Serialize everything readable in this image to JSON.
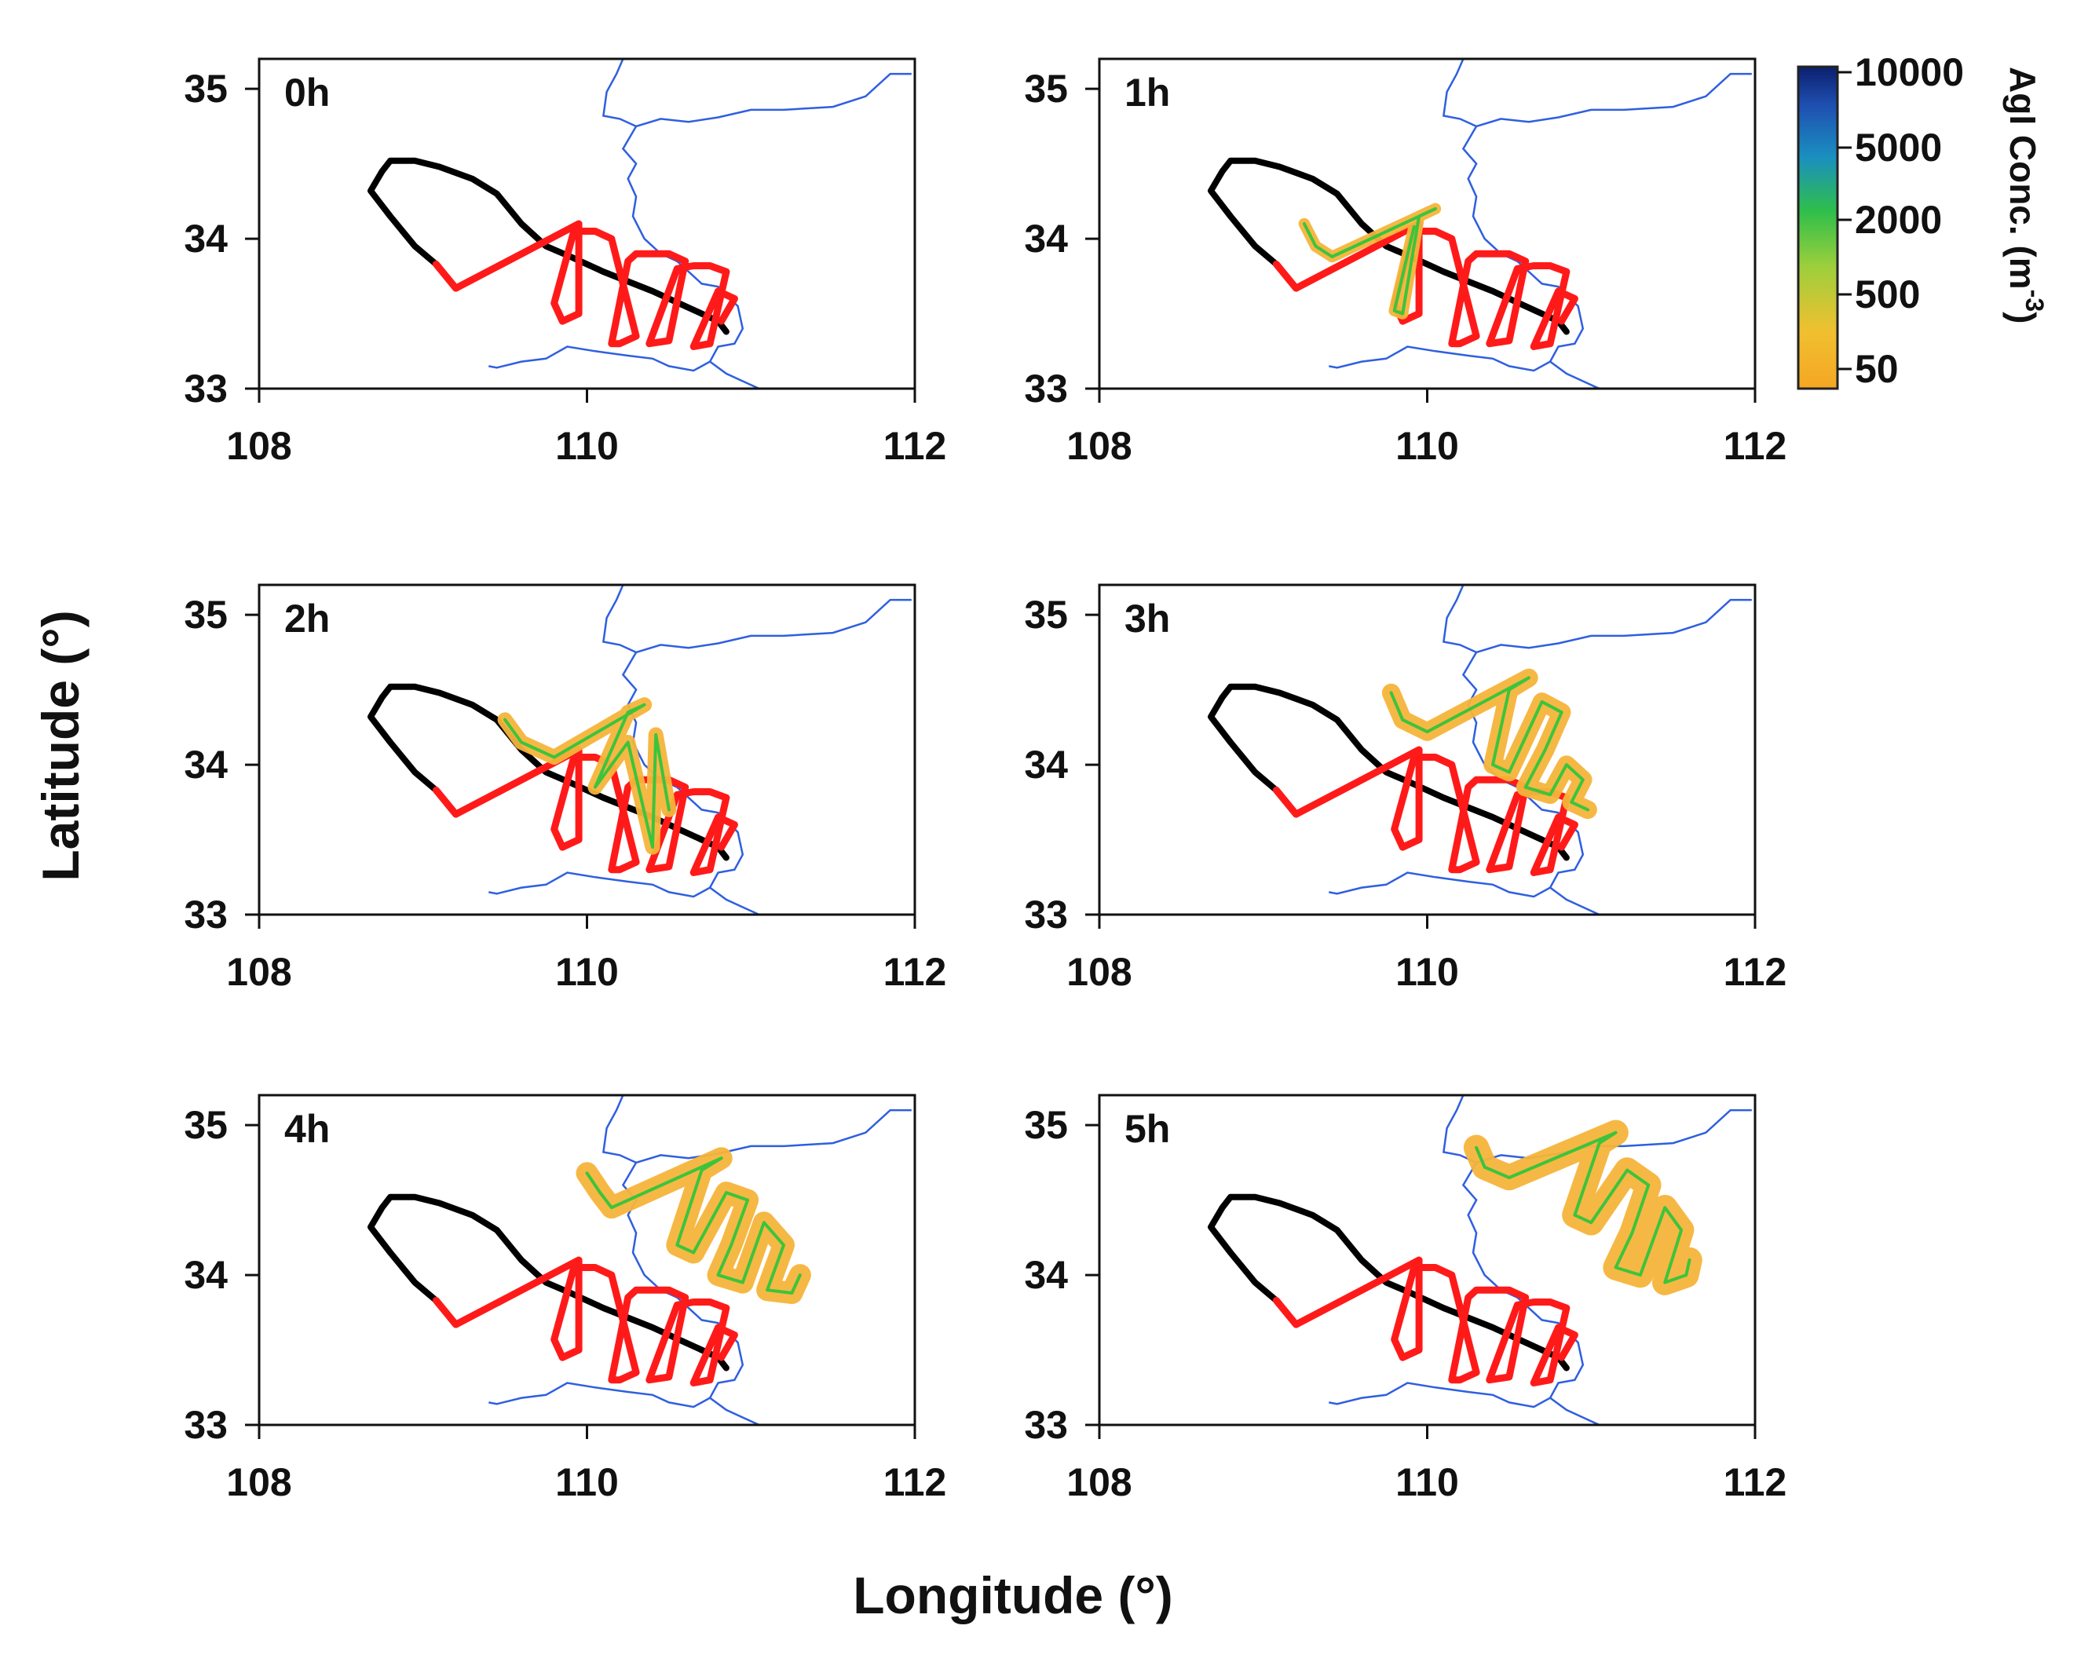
{
  "chart_data": {
    "type": "map-track-panels",
    "xlabel": "Longitude (°)",
    "ylabel": "Latitude (°)",
    "xlim": [
      108,
      112
    ],
    "ylim": [
      33,
      35.2
    ],
    "xticks": [
      "108",
      "110",
      "112"
    ],
    "yticks": [
      "33",
      "34",
      "35"
    ],
    "colorbar": {
      "title": "AgI Conc. (m",
      "title_superscript": "-3",
      "title_close": ")",
      "ticks": [
        "10000",
        "5000",
        "2000",
        "500",
        "50"
      ],
      "colors": [
        "#f5a623",
        "#f0c030",
        "#9ccf3c",
        "#2fbf4a",
        "#1a8fc0",
        "#1f4fb0",
        "#0b1f6e"
      ]
    },
    "colors": {
      "flight_track": "#000000",
      "seeding_track": "#ff1a1a",
      "river": "#2f5fe0",
      "plume_edge": "#f5b43a",
      "plume_core": "#3cc43c"
    },
    "flight_track": [
      [
        110.85,
        33.38
      ],
      [
        110.8,
        33.45
      ],
      [
        110.6,
        33.55
      ],
      [
        110.4,
        33.65
      ],
      [
        110.1,
        33.78
      ],
      [
        109.9,
        33.88
      ],
      [
        109.75,
        33.95
      ],
      [
        109.6,
        34.1
      ],
      [
        109.45,
        34.3
      ],
      [
        109.3,
        34.4
      ],
      [
        109.1,
        34.48
      ],
      [
        108.95,
        34.52
      ],
      [
        108.8,
        34.52
      ],
      [
        108.75,
        34.45
      ],
      [
        108.68,
        34.32
      ],
      [
        108.8,
        34.15
      ],
      [
        108.95,
        33.95
      ],
      [
        109.08,
        33.83
      ]
    ],
    "seeding_track": [
      [
        109.08,
        33.83
      ],
      [
        109.2,
        33.67
      ],
      [
        109.55,
        33.87
      ],
      [
        109.95,
        34.1
      ],
      [
        109.95,
        33.5
      ],
      [
        109.85,
        33.45
      ],
      [
        109.8,
        33.57
      ],
      [
        109.92,
        34.05
      ],
      [
        110.05,
        34.05
      ],
      [
        110.15,
        34.0
      ],
      [
        110.3,
        33.35
      ],
      [
        110.2,
        33.3
      ],
      [
        110.15,
        33.3
      ],
      [
        110.25,
        33.85
      ],
      [
        110.3,
        33.9
      ],
      [
        110.5,
        33.9
      ],
      [
        110.6,
        33.85
      ],
      [
        110.5,
        33.32
      ],
      [
        110.38,
        33.3
      ],
      [
        110.55,
        33.8
      ],
      [
        110.65,
        33.82
      ],
      [
        110.75,
        33.82
      ],
      [
        110.85,
        33.78
      ],
      [
        110.75,
        33.3
      ],
      [
        110.65,
        33.28
      ],
      [
        110.8,
        33.65
      ],
      [
        110.9,
        33.6
      ],
      [
        110.82,
        33.45
      ]
    ],
    "river": [
      [
        111.98,
        35.1
      ],
      [
        111.85,
        35.1
      ],
      [
        111.7,
        34.95
      ],
      [
        111.5,
        34.88
      ],
      [
        111.2,
        34.86
      ],
      [
        111.0,
        34.86
      ],
      [
        110.8,
        34.81
      ],
      [
        110.62,
        34.78
      ],
      [
        110.45,
        34.8
      ],
      [
        110.3,
        34.75
      ],
      [
        110.22,
        34.6
      ],
      [
        110.3,
        34.5
      ],
      [
        110.25,
        34.4
      ],
      [
        110.3,
        34.28
      ],
      [
        110.28,
        34.15
      ],
      [
        110.35,
        34.0
      ],
      [
        110.45,
        33.9
      ],
      [
        110.55,
        33.85
      ],
      [
        110.62,
        33.78
      ],
      [
        110.7,
        33.7
      ],
      [
        110.8,
        33.68
      ],
      [
        110.92,
        33.55
      ],
      [
        110.95,
        33.4
      ],
      [
        110.9,
        33.3
      ],
      [
        110.8,
        33.28
      ],
      [
        110.75,
        33.18
      ],
      [
        110.65,
        33.12
      ],
      [
        110.5,
        33.15
      ],
      [
        110.4,
        33.2
      ],
      [
        110.25,
        33.22
      ],
      [
        110.05,
        33.25
      ],
      [
        109.88,
        33.28
      ],
      [
        109.75,
        33.2
      ],
      [
        109.6,
        33.18
      ],
      [
        109.45,
        33.14
      ],
      [
        109.4,
        33.15
      ]
    ],
    "river_branches": [
      [
        [
          110.22,
          35.2
        ],
        [
          110.18,
          35.1
        ],
        [
          110.12,
          34.98
        ],
        [
          110.1,
          34.82
        ],
        [
          110.2,
          34.8
        ],
        [
          110.3,
          34.75
        ]
      ],
      [
        [
          110.75,
          33.18
        ],
        [
          110.85,
          33.1
        ],
        [
          110.95,
          33.05
        ],
        [
          111.05,
          33.0
        ]
      ]
    ],
    "panels": [
      {
        "label": "0h",
        "plume": []
      },
      {
        "label": "1h",
        "plume": [
          [
            [
              109.25,
              34.1
            ],
            [
              109.32,
              33.95
            ],
            [
              109.42,
              33.88
            ],
            [
              110.05,
              34.2
            ],
            [
              109.95,
              34.15
            ],
            [
              109.85,
              33.5
            ],
            [
              109.8,
              33.52
            ],
            [
              109.92,
              34.08
            ]
          ]
        ]
      },
      {
        "label": "2h",
        "plume": [
          [
            [
              109.5,
              34.3
            ],
            [
              109.6,
              34.15
            ],
            [
              109.8,
              34.05
            ],
            [
              110.35,
              34.4
            ],
            [
              110.25,
              34.35
            ],
            [
              110.05,
              33.85
            ],
            [
              110.25,
              34.15
            ],
            [
              110.4,
              33.45
            ],
            [
              110.42,
              34.2
            ],
            [
              110.5,
              33.7
            ]
          ]
        ]
      },
      {
        "label": "3h",
        "plume": [
          [
            [
              109.78,
              34.48
            ],
            [
              109.85,
              34.3
            ],
            [
              110.0,
              34.22
            ],
            [
              110.62,
              34.58
            ],
            [
              110.5,
              34.5
            ],
            [
              110.4,
              34.0
            ],
            [
              110.5,
              33.95
            ],
            [
              110.7,
              34.42
            ],
            [
              110.82,
              34.35
            ],
            [
              110.72,
              34.1
            ],
            [
              110.6,
              33.85
            ],
            [
              110.75,
              33.8
            ],
            [
              110.85,
              34.0
            ],
            [
              110.95,
              33.9
            ],
            [
              110.88,
              33.75
            ],
            [
              110.98,
              33.7
            ]
          ]
        ]
      },
      {
        "label": "4h",
        "plume": [
          [
            [
              110.0,
              34.68
            ],
            [
              110.08,
              34.55
            ],
            [
              110.15,
              34.45
            ],
            [
              110.82,
              34.78
            ],
            [
              110.7,
              34.7
            ],
            [
              110.55,
              34.2
            ],
            [
              110.65,
              34.15
            ],
            [
              110.85,
              34.55
            ],
            [
              110.98,
              34.5
            ],
            [
              110.88,
              34.2
            ],
            [
              110.8,
              34.0
            ],
            [
              110.95,
              33.95
            ],
            [
              111.08,
              34.35
            ],
            [
              111.2,
              34.2
            ],
            [
              111.1,
              33.9
            ],
            [
              111.25,
              33.88
            ],
            [
              111.3,
              34.0
            ]
          ]
        ]
      },
      {
        "label": "5h",
        "plume": [
          [
            [
              110.3,
              34.85
            ],
            [
              110.35,
              34.72
            ],
            [
              110.5,
              34.65
            ],
            [
              111.15,
              34.95
            ],
            [
              111.05,
              34.88
            ],
            [
              110.9,
              34.4
            ],
            [
              111.0,
              34.35
            ],
            [
              111.22,
              34.7
            ],
            [
              111.35,
              34.6
            ],
            [
              111.25,
              34.28
            ],
            [
              111.15,
              34.05
            ],
            [
              111.3,
              34.0
            ],
            [
              111.45,
              34.45
            ],
            [
              111.55,
              34.3
            ],
            [
              111.45,
              33.95
            ],
            [
              111.58,
              34.0
            ],
            [
              111.6,
              34.1
            ]
          ]
        ]
      }
    ]
  }
}
